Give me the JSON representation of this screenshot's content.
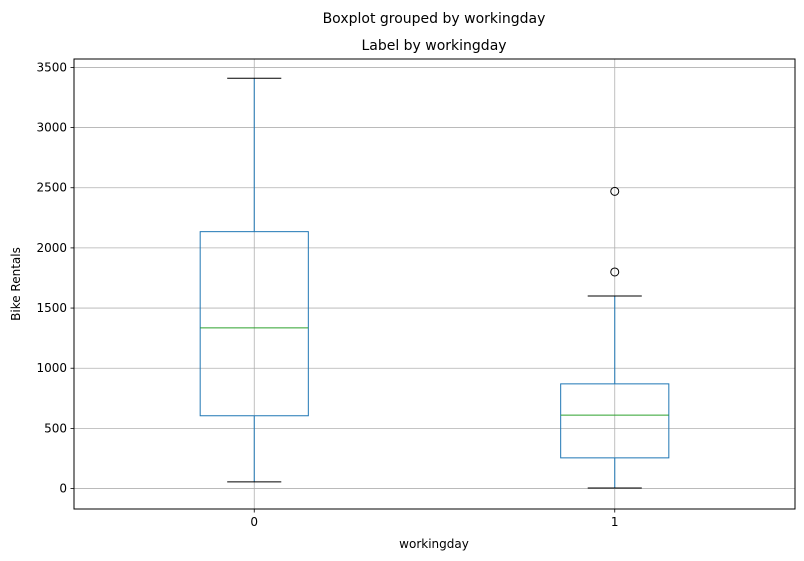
{
  "chart_data": {
    "type": "boxplot",
    "suptitle": "Boxplot grouped by workingday",
    "title": "Label by workingday",
    "xlabel": "workingday",
    "ylabel": "Bike Rentals",
    "ylim": [
      -170,
      3570
    ],
    "yticks": [
      0,
      500,
      1000,
      1500,
      2000,
      2500,
      3000,
      3500
    ],
    "grid": true,
    "categories": [
      "0",
      "1"
    ],
    "boxes": [
      {
        "category": "0",
        "whisker_low": 55,
        "q1": 605,
        "median": 1335,
        "q3": 2135,
        "whisker_high": 3410,
        "outliers": []
      },
      {
        "category": "1",
        "whisker_low": 5,
        "q1": 255,
        "median": 610,
        "q3": 870,
        "whisker_high": 1600,
        "outliers": [
          1800,
          2470
        ]
      }
    ],
    "colors": {
      "box": "#1f77b4",
      "median": "#2ca02c",
      "cap": "#000000",
      "grid": "#b0b0b0",
      "outlier": "#000000"
    }
  }
}
